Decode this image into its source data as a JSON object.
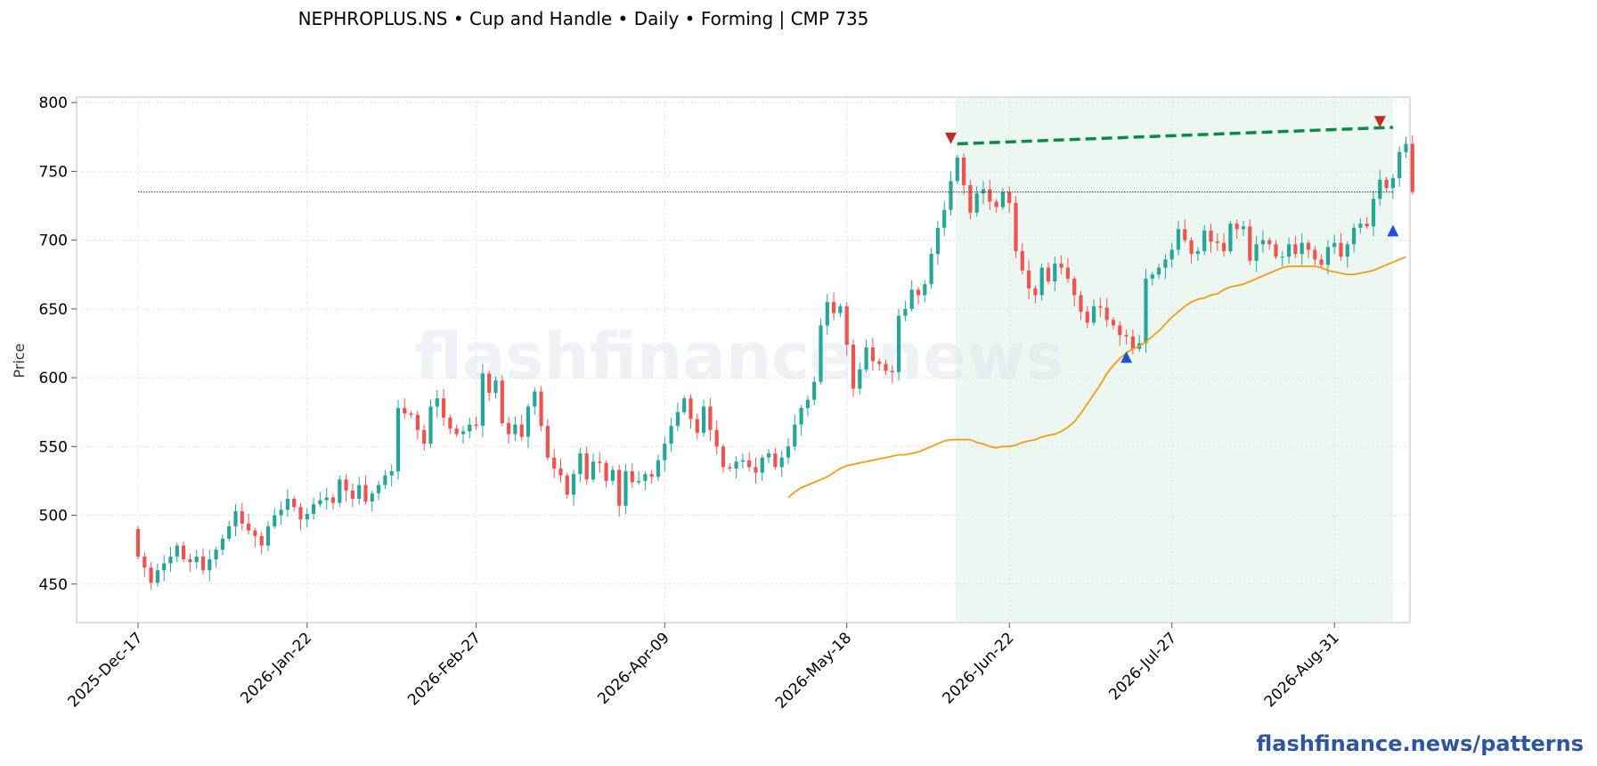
{
  "chart_data": {
    "type": "candlestick",
    "title": "NEPHROPLUS.NS  •  Cup and Handle  •  Daily  •  Forming  |  CMP 735",
    "ylabel": "Price",
    "xlabel": "",
    "ylim": [
      422,
      804
    ],
    "yticks": [
      450,
      500,
      550,
      600,
      650,
      700,
      750,
      800
    ],
    "xtick_labels": [
      "2025-Dec-17",
      "2026-Jan-22",
      "2026-Feb-27",
      "2026-Apr-09",
      "2026-May-18",
      "2026-Jun-22",
      "2026-Jul-27",
      "2026-Aug-31"
    ],
    "grid": true,
    "watermark": "flashfinance.news",
    "footer": "flashfinance.news/patterns",
    "cmp": 735,
    "colors": {
      "up": "#26a69a",
      "down": "#ef5350",
      "ma": "#f39c12",
      "neckline": "#0a8a43",
      "marker_down": "#c62828",
      "marker_up": "#1e4fe0",
      "pattern_zone": "#e6f4ec",
      "brand": "#2d55a0"
    },
    "candle_closes": [
      470,
      462,
      451,
      460,
      465,
      470,
      478,
      468,
      466,
      470,
      460,
      468,
      475,
      483,
      492,
      503,
      494,
      489,
      485,
      478,
      492,
      500,
      504,
      512,
      506,
      497,
      501,
      508,
      511,
      513,
      509,
      526,
      518,
      512,
      522,
      510,
      516,
      522,
      529,
      532,
      578,
      574,
      573,
      562,
      552,
      579,
      585,
      571,
      563,
      559,
      561,
      566,
      565,
      603,
      589,
      598,
      567,
      559,
      566,
      557,
      579,
      590,
      565,
      542,
      534,
      529,
      515,
      530,
      545,
      526,
      539,
      538,
      525,
      533,
      507,
      532,
      524,
      525,
      530,
      528,
      540,
      552,
      565,
      575,
      585,
      570,
      560,
      579,
      562,
      550,
      535,
      534,
      539,
      540,
      535,
      531,
      542,
      545,
      535,
      542,
      550,
      566,
      578,
      584,
      597,
      638,
      655,
      647,
      652,
      624,
      592,
      606,
      622,
      612,
      610,
      605,
      604,
      645,
      650,
      664,
      660,
      668,
      690,
      709,
      722,
      743,
      760,
      740,
      720,
      734,
      737,
      728,
      724,
      735,
      727,
      692,
      678,
      665,
      660,
      680,
      670,
      683,
      680,
      672,
      660,
      648,
      640,
      652,
      651,
      642,
      638,
      631,
      630,
      621,
      625,
      672,
      675,
      680,
      686,
      693,
      708,
      700,
      690,
      692,
      707,
      699,
      698,
      692,
      712,
      708,
      710,
      685,
      697,
      700,
      697,
      688,
      688,
      697,
      690,
      698,
      693,
      686,
      682,
      695,
      698,
      688,
      697,
      709,
      712,
      710,
      730,
      744,
      738,
      745,
      764,
      770,
      735
    ],
    "ma_values": [
      513,
      517,
      520,
      522,
      524,
      526,
      528,
      531,
      534,
      536,
      537,
      538,
      539,
      540,
      541,
      542,
      543,
      544,
      544,
      545,
      546,
      548,
      550,
      552,
      554,
      555,
      555,
      555,
      555,
      553,
      552,
      550,
      549,
      550,
      550,
      551,
      553,
      554,
      555,
      557,
      558,
      559,
      561,
      564,
      568,
      574,
      581,
      588,
      595,
      603,
      609,
      614,
      618,
      621,
      623,
      626,
      630,
      634,
      639,
      644,
      648,
      652,
      655,
      657,
      658,
      660,
      661,
      664,
      666,
      667,
      668,
      670,
      672,
      674,
      676,
      678,
      680,
      681,
      681,
      681,
      681,
      681,
      680,
      678,
      677,
      676,
      675,
      675,
      676,
      677,
      678,
      680,
      682,
      684,
      686,
      688
    ],
    "pattern_zone": {
      "start": 126,
      "end": 193
    },
    "neckline": {
      "x1": 126,
      "y1": 770,
      "x2": 193,
      "y2": 782
    },
    "cmp_line": {
      "x1": 0,
      "x2": 193,
      "y": 735
    },
    "markers": [
      {
        "x": 125,
        "y": 774,
        "dir": "down"
      },
      {
        "x": 152,
        "y": 615,
        "dir": "up"
      },
      {
        "x": 191,
        "y": 786,
        "dir": "down"
      },
      {
        "x": 193,
        "y": 707,
        "dir": "up"
      }
    ]
  }
}
